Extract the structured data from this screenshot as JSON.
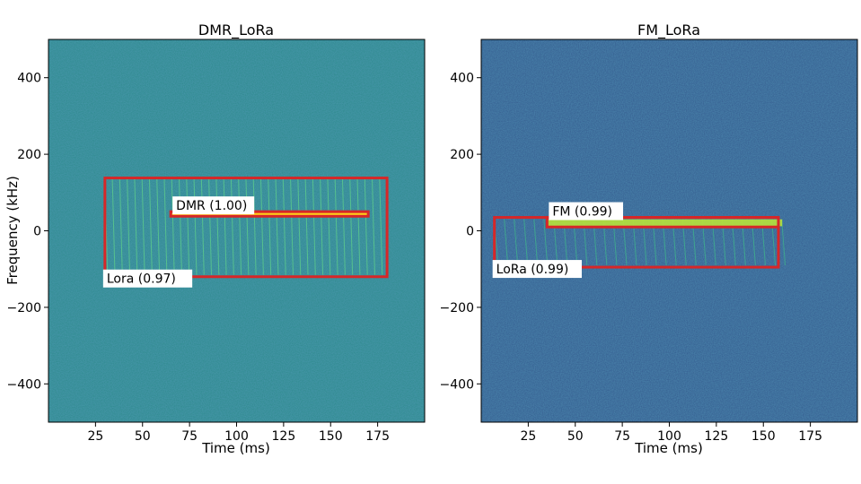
{
  "chart_data": [
    {
      "type": "heatmap",
      "title": "DMR_LoRa",
      "xlabel": "Time (ms)",
      "ylabel": "Frequency (kHz)",
      "xlim": [
        0,
        200
      ],
      "ylim": [
        -500,
        500
      ],
      "xticks": [
        25,
        50,
        75,
        100,
        125,
        150,
        175
      ],
      "yticks": [
        400,
        200,
        0,
        -200,
        -400
      ],
      "xtick_labels": [
        "25",
        "50",
        "75",
        "100",
        "125",
        "150",
        "175"
      ],
      "ytick_labels": [
        "400",
        "200",
        "0",
        "−200",
        "−400"
      ],
      "background_color": "#2a8a8a",
      "detections": [
        {
          "label": "Lora (0.97)",
          "x0": 30,
          "x1": 180,
          "y0": -120,
          "y1": 138,
          "label_pos": "bottom-left"
        },
        {
          "label": "DMR (1.00)",
          "x0": 65,
          "x1": 170,
          "y0": 38,
          "y1": 50,
          "label_pos": "top-left"
        }
      ],
      "signals": [
        {
          "kind": "chirp-train",
          "x0": 30,
          "x1": 180,
          "y0": -115,
          "y1": 135,
          "count": 38,
          "color": "#5fd08a"
        },
        {
          "kind": "tone",
          "x0": 65,
          "x1": 170,
          "y": 44,
          "color": "#ffd21a"
        }
      ]
    },
    {
      "type": "heatmap",
      "title": "FM_LoRa",
      "xlabel": "Time (ms)",
      "ylabel": "",
      "xlim": [
        0,
        200
      ],
      "ylim": [
        -500,
        500
      ],
      "xticks": [
        25,
        50,
        75,
        100,
        125,
        150,
        175
      ],
      "yticks": [
        400,
        200,
        0,
        -200,
        -400
      ],
      "xtick_labels": [
        "25",
        "50",
        "75",
        "100",
        "125",
        "150",
        "175"
      ],
      "ytick_labels": [
        "400",
        "200",
        "0",
        "−200",
        "−400"
      ],
      "background_color": "#32578c",
      "detections": [
        {
          "label": "LoRa (0.99)",
          "x0": 7,
          "x1": 158,
          "y0": -95,
          "y1": 35,
          "label_pos": "bottom-left"
        },
        {
          "label": "FM (0.99)",
          "x0": 35,
          "x1": 158,
          "y0": 10,
          "y1": 35,
          "label_pos": "top-left"
        }
      ],
      "signals": [
        {
          "kind": "chirp-train",
          "x0": 7,
          "x1": 165,
          "y0": -90,
          "y1": 30,
          "count": 30,
          "color": "#3fb58a"
        },
        {
          "kind": "band",
          "x0": 35,
          "x1": 160,
          "y0": 12,
          "y1": 30,
          "color": "#b8e23a"
        }
      ]
    }
  ]
}
